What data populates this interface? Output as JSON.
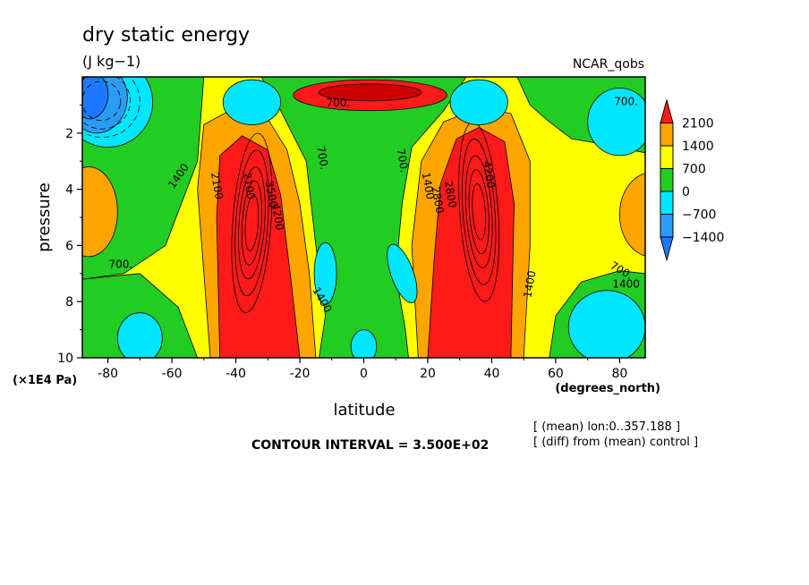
{
  "chart_data": {
    "type": "heatmap",
    "title": "dry static energy",
    "units": "(J kg−1)",
    "dataset": "NCAR_qobs",
    "xlabel": "latitude",
    "x_units": "(degrees_north)",
    "ylabel": "pressure",
    "y_units": "(×1E4 Pa)",
    "xlim": [
      -88,
      88
    ],
    "ylim": [
      10,
      0
    ],
    "xticks": [
      -80,
      -60,
      -40,
      -20,
      0,
      20,
      40,
      60,
      80
    ],
    "yticks": [
      2,
      4,
      6,
      8,
      10
    ],
    "colorbar_levels": [
      2100,
      1400,
      700,
      0,
      -700,
      -1400
    ],
    "colors": {
      "below_-1400": "#1e78ff",
      "-1400_-700": "#2a9cf5",
      "-700_0": "#00e6ff",
      "0_700": "#22cc22",
      "700_1400": "#ffff00",
      "1400_2100": "#ffa500",
      "above_2100": "#ff1a1a"
    },
    "contour_labels": [
      "700.",
      "700.",
      "700.",
      "700.",
      "700.",
      "700.",
      "1400",
      "1400",
      "1400",
      "1400",
      "1400",
      "2100",
      "2100",
      "2800",
      "2800",
      "3500",
      "4200",
      "4200"
    ],
    "contour_interval": "CONTOUR INTERVAL = 3.500E+02",
    "notes": [
      "[ (mean) lon:0..357.188 ]",
      "[ (diff) from (mean) control ]"
    ]
  }
}
